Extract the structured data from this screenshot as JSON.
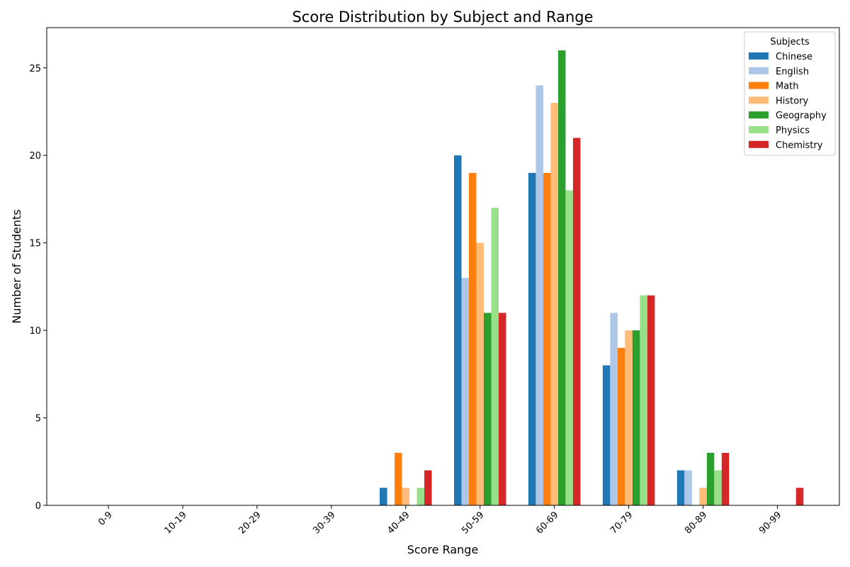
{
  "chart_data": {
    "type": "bar",
    "title": "Score Distribution by Subject and Range",
    "xlabel": "Score Range",
    "ylabel": "Number of Students",
    "categories": [
      "0-9",
      "10-19",
      "20-29",
      "30-39",
      "40-49",
      "50-59",
      "60-69",
      "70-79",
      "80-89",
      "90-99"
    ],
    "ylim": [
      0,
      27.3
    ],
    "yticks": [
      "0",
      "5",
      "10",
      "15",
      "20",
      "25"
    ],
    "legend_title": "Subjects",
    "legend_position": "top-right",
    "grid": false,
    "series": [
      {
        "name": "Chinese",
        "color": "#1f77b4",
        "values": [
          0,
          0,
          0,
          0,
          1,
          20,
          19,
          8,
          2,
          0
        ]
      },
      {
        "name": "English",
        "color": "#aec7e8",
        "values": [
          0,
          0,
          0,
          0,
          0,
          13,
          24,
          11,
          2,
          0
        ]
      },
      {
        "name": "Math",
        "color": "#ff7f0e",
        "values": [
          0,
          0,
          0,
          0,
          3,
          19,
          19,
          9,
          0,
          0
        ]
      },
      {
        "name": "History",
        "color": "#ffbb78",
        "values": [
          0,
          0,
          0,
          0,
          1,
          15,
          23,
          10,
          1,
          0
        ]
      },
      {
        "name": "Geography",
        "color": "#2ca02c",
        "values": [
          0,
          0,
          0,
          0,
          0,
          11,
          26,
          10,
          3,
          0
        ]
      },
      {
        "name": "Physics",
        "color": "#98df8a",
        "values": [
          0,
          0,
          0,
          0,
          1,
          17,
          18,
          12,
          2,
          0
        ]
      },
      {
        "name": "Chemistry",
        "color": "#d62728",
        "values": [
          0,
          0,
          0,
          0,
          2,
          11,
          21,
          12,
          3,
          1
        ]
      }
    ]
  }
}
